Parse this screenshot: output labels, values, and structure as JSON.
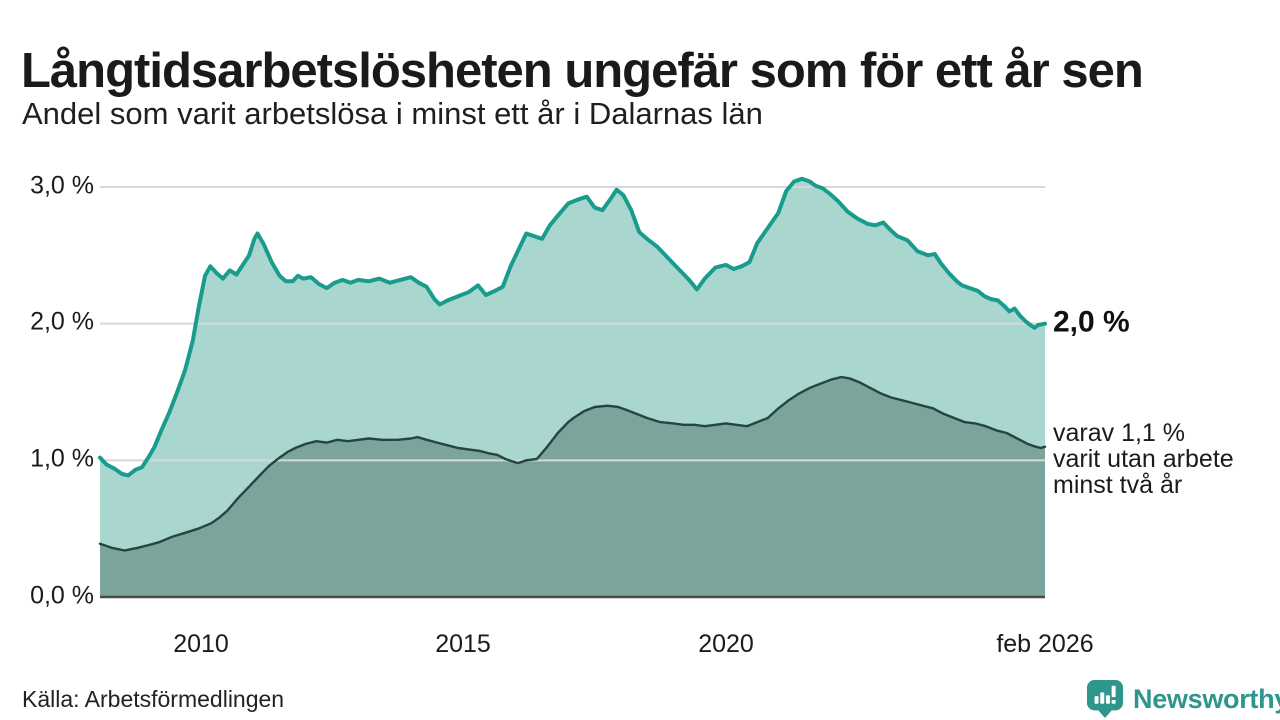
{
  "title": "Långtidsarbetslösheten ungefär som för ett år sen",
  "subtitle": "Andel som varit arbetslösa i minst ett år i Dalarnas län",
  "source": "Källa: Arbetsförmedlingen",
  "logo": {
    "text": "Newsworthy",
    "icon": "bar-chart-pin-icon",
    "color": "#2E968A"
  },
  "annotations": {
    "end_value": "2,0 %",
    "secondary": [
      "varav 1,1 %",
      "varit utan arbete",
      "minst två år"
    ]
  },
  "colors": {
    "line_primary": "#1A9C8C",
    "fill_primary": "#A9D6CF",
    "line_secondary": "#27453F",
    "fill_secondary": "#7BA49D",
    "gridline": "#D4D9D8",
    "axis": "#4A4A4A",
    "text": "#1b1b1b"
  },
  "chart_data": {
    "type": "area",
    "title": "Långtidsarbetslösheten ungefär som för ett år sen",
    "subtitle": "Andel som varit arbetslösa i minst ett år i Dalarnas län",
    "unit": "%",
    "x_range": [
      2008.08,
      2026.08
    ],
    "ylim": [
      0,
      3.07
    ],
    "grid": true,
    "x_ticks": [
      {
        "label": "2010",
        "year": 2010
      },
      {
        "label": "2015",
        "year": 2015
      },
      {
        "label": "2020",
        "year": 2020
      },
      {
        "label": "feb 2026",
        "year": 2026.08
      }
    ],
    "y_ticks": [
      {
        "label": "0,0 %",
        "value": 0
      },
      {
        "label": "1,0 %",
        "value": 1
      },
      {
        "label": "2,0 %",
        "value": 2
      },
      {
        "label": "3,0 %",
        "value": 3
      }
    ],
    "series": [
      {
        "name": "Andel arbetslösa minst ett år",
        "end_label": "2,0 %",
        "points": [
          [
            2008.08,
            1.02
          ],
          [
            2008.2,
            0.97
          ],
          [
            2008.35,
            0.94
          ],
          [
            2008.5,
            0.9
          ],
          [
            2008.62,
            0.89
          ],
          [
            2008.75,
            0.93
          ],
          [
            2008.88,
            0.95
          ],
          [
            2009.0,
            1.02
          ],
          [
            2009.12,
            1.1
          ],
          [
            2009.25,
            1.22
          ],
          [
            2009.4,
            1.35
          ],
          [
            2009.55,
            1.5
          ],
          [
            2009.7,
            1.66
          ],
          [
            2009.85,
            1.88
          ],
          [
            2009.95,
            2.1
          ],
          [
            2010.08,
            2.35
          ],
          [
            2010.18,
            2.42
          ],
          [
            2010.3,
            2.37
          ],
          [
            2010.42,
            2.33
          ],
          [
            2010.55,
            2.39
          ],
          [
            2010.68,
            2.36
          ],
          [
            2010.8,
            2.43
          ],
          [
            2010.92,
            2.5
          ],
          [
            2011.02,
            2.62
          ],
          [
            2011.08,
            2.66
          ],
          [
            2011.2,
            2.58
          ],
          [
            2011.35,
            2.45
          ],
          [
            2011.5,
            2.35
          ],
          [
            2011.62,
            2.31
          ],
          [
            2011.75,
            2.31
          ],
          [
            2011.85,
            2.35
          ],
          [
            2011.95,
            2.33
          ],
          [
            2012.1,
            2.34
          ],
          [
            2012.25,
            2.29
          ],
          [
            2012.4,
            2.26
          ],
          [
            2012.55,
            2.3
          ],
          [
            2012.7,
            2.32
          ],
          [
            2012.85,
            2.3
          ],
          [
            2013.0,
            2.32
          ],
          [
            2013.2,
            2.31
          ],
          [
            2013.4,
            2.33
          ],
          [
            2013.6,
            2.3
          ],
          [
            2013.8,
            2.32
          ],
          [
            2014.0,
            2.34
          ],
          [
            2014.15,
            2.3
          ],
          [
            2014.3,
            2.27
          ],
          [
            2014.45,
            2.18
          ],
          [
            2014.55,
            2.14
          ],
          [
            2014.7,
            2.17
          ],
          [
            2014.9,
            2.2
          ],
          [
            2015.1,
            2.23
          ],
          [
            2015.28,
            2.28
          ],
          [
            2015.43,
            2.21
          ],
          [
            2015.6,
            2.24
          ],
          [
            2015.75,
            2.27
          ],
          [
            2015.9,
            2.42
          ],
          [
            2016.05,
            2.54
          ],
          [
            2016.2,
            2.66
          ],
          [
            2016.35,
            2.64
          ],
          [
            2016.5,
            2.62
          ],
          [
            2016.65,
            2.72
          ],
          [
            2016.8,
            2.79
          ],
          [
            2017.0,
            2.88
          ],
          [
            2017.2,
            2.91
          ],
          [
            2017.35,
            2.93
          ],
          [
            2017.5,
            2.85
          ],
          [
            2017.65,
            2.83
          ],
          [
            2017.8,
            2.91
          ],
          [
            2017.92,
            2.98
          ],
          [
            2018.05,
            2.94
          ],
          [
            2018.2,
            2.83
          ],
          [
            2018.35,
            2.67
          ],
          [
            2018.5,
            2.62
          ],
          [
            2018.7,
            2.56
          ],
          [
            2018.9,
            2.48
          ],
          [
            2019.1,
            2.4
          ],
          [
            2019.3,
            2.32
          ],
          [
            2019.45,
            2.25
          ],
          [
            2019.6,
            2.33
          ],
          [
            2019.8,
            2.41
          ],
          [
            2020.0,
            2.43
          ],
          [
            2020.15,
            2.4
          ],
          [
            2020.3,
            2.42
          ],
          [
            2020.45,
            2.45
          ],
          [
            2020.6,
            2.59
          ],
          [
            2020.8,
            2.7
          ],
          [
            2021.0,
            2.81
          ],
          [
            2021.15,
            2.97
          ],
          [
            2021.3,
            3.04
          ],
          [
            2021.45,
            3.06
          ],
          [
            2021.6,
            3.04
          ],
          [
            2021.7,
            3.01
          ],
          [
            2021.85,
            2.99
          ],
          [
            2021.98,
            2.95
          ],
          [
            2022.13,
            2.9
          ],
          [
            2022.32,
            2.82
          ],
          [
            2022.5,
            2.77
          ],
          [
            2022.7,
            2.73
          ],
          [
            2022.85,
            2.72
          ],
          [
            2023.0,
            2.74
          ],
          [
            2023.15,
            2.68
          ],
          [
            2023.27,
            2.64
          ],
          [
            2023.46,
            2.61
          ],
          [
            2023.65,
            2.53
          ],
          [
            2023.85,
            2.5
          ],
          [
            2023.98,
            2.51
          ],
          [
            2024.1,
            2.44
          ],
          [
            2024.25,
            2.37
          ],
          [
            2024.4,
            2.31
          ],
          [
            2024.5,
            2.28
          ],
          [
            2024.65,
            2.26
          ],
          [
            2024.8,
            2.24
          ],
          [
            2024.93,
            2.2
          ],
          [
            2025.05,
            2.18
          ],
          [
            2025.18,
            2.17
          ],
          [
            2025.3,
            2.13
          ],
          [
            2025.4,
            2.09
          ],
          [
            2025.5,
            2.11
          ],
          [
            2025.6,
            2.06
          ],
          [
            2025.7,
            2.02
          ],
          [
            2025.8,
            1.99
          ],
          [
            2025.88,
            1.97
          ],
          [
            2025.95,
            1.99
          ],
          [
            2026.08,
            2.0
          ]
        ]
      },
      {
        "name": "varav utan arbete minst två år",
        "end_label": "1,1 %",
        "points": [
          [
            2008.08,
            0.39
          ],
          [
            2008.3,
            0.36
          ],
          [
            2008.55,
            0.34
          ],
          [
            2008.8,
            0.36
          ],
          [
            2009.0,
            0.38
          ],
          [
            2009.2,
            0.4
          ],
          [
            2009.45,
            0.44
          ],
          [
            2009.7,
            0.47
          ],
          [
            2009.95,
            0.5
          ],
          [
            2010.2,
            0.54
          ],
          [
            2010.35,
            0.58
          ],
          [
            2010.5,
            0.63
          ],
          [
            2010.7,
            0.72
          ],
          [
            2010.9,
            0.8
          ],
          [
            2011.1,
            0.88
          ],
          [
            2011.3,
            0.96
          ],
          [
            2011.5,
            1.02
          ],
          [
            2011.65,
            1.06
          ],
          [
            2011.8,
            1.09
          ],
          [
            2012.0,
            1.12
          ],
          [
            2012.2,
            1.14
          ],
          [
            2012.4,
            1.13
          ],
          [
            2012.6,
            1.15
          ],
          [
            2012.8,
            1.14
          ],
          [
            2013.0,
            1.15
          ],
          [
            2013.2,
            1.16
          ],
          [
            2013.45,
            1.15
          ],
          [
            2013.75,
            1.15
          ],
          [
            2014.0,
            1.16
          ],
          [
            2014.13,
            1.17
          ],
          [
            2014.3,
            1.15
          ],
          [
            2014.5,
            1.13
          ],
          [
            2014.7,
            1.11
          ],
          [
            2014.9,
            1.09
          ],
          [
            2015.1,
            1.08
          ],
          [
            2015.3,
            1.07
          ],
          [
            2015.5,
            1.05
          ],
          [
            2015.65,
            1.04
          ],
          [
            2015.8,
            1.01
          ],
          [
            2016.04,
            0.98
          ],
          [
            2016.2,
            1.0
          ],
          [
            2016.4,
            1.01
          ],
          [
            2016.6,
            1.1
          ],
          [
            2016.8,
            1.2
          ],
          [
            2017.0,
            1.28
          ],
          [
            2017.1,
            1.31
          ],
          [
            2017.3,
            1.36
          ],
          [
            2017.5,
            1.39
          ],
          [
            2017.75,
            1.4
          ],
          [
            2017.95,
            1.39
          ],
          [
            2018.1,
            1.37
          ],
          [
            2018.3,
            1.34
          ],
          [
            2018.5,
            1.31
          ],
          [
            2018.75,
            1.28
          ],
          [
            2019.0,
            1.27
          ],
          [
            2019.2,
            1.26
          ],
          [
            2019.4,
            1.26
          ],
          [
            2019.6,
            1.25
          ],
          [
            2019.8,
            1.26
          ],
          [
            2020.0,
            1.27
          ],
          [
            2020.2,
            1.26
          ],
          [
            2020.4,
            1.25
          ],
          [
            2020.6,
            1.28
          ],
          [
            2020.8,
            1.31
          ],
          [
            2021.0,
            1.38
          ],
          [
            2021.2,
            1.44
          ],
          [
            2021.4,
            1.49
          ],
          [
            2021.6,
            1.53
          ],
          [
            2021.8,
            1.56
          ],
          [
            2022.0,
            1.59
          ],
          [
            2022.2,
            1.61
          ],
          [
            2022.35,
            1.6
          ],
          [
            2022.55,
            1.57
          ],
          [
            2022.75,
            1.53
          ],
          [
            2022.95,
            1.49
          ],
          [
            2023.15,
            1.46
          ],
          [
            2023.35,
            1.44
          ],
          [
            2023.55,
            1.42
          ],
          [
            2023.75,
            1.4
          ],
          [
            2023.95,
            1.38
          ],
          [
            2024.15,
            1.34
          ],
          [
            2024.35,
            1.31
          ],
          [
            2024.55,
            1.28
          ],
          [
            2024.75,
            1.27
          ],
          [
            2024.95,
            1.25
          ],
          [
            2025.15,
            1.22
          ],
          [
            2025.35,
            1.2
          ],
          [
            2025.55,
            1.16
          ],
          [
            2025.75,
            1.12
          ],
          [
            2025.9,
            1.1
          ],
          [
            2026.0,
            1.09
          ],
          [
            2026.08,
            1.1
          ]
        ]
      }
    ]
  }
}
